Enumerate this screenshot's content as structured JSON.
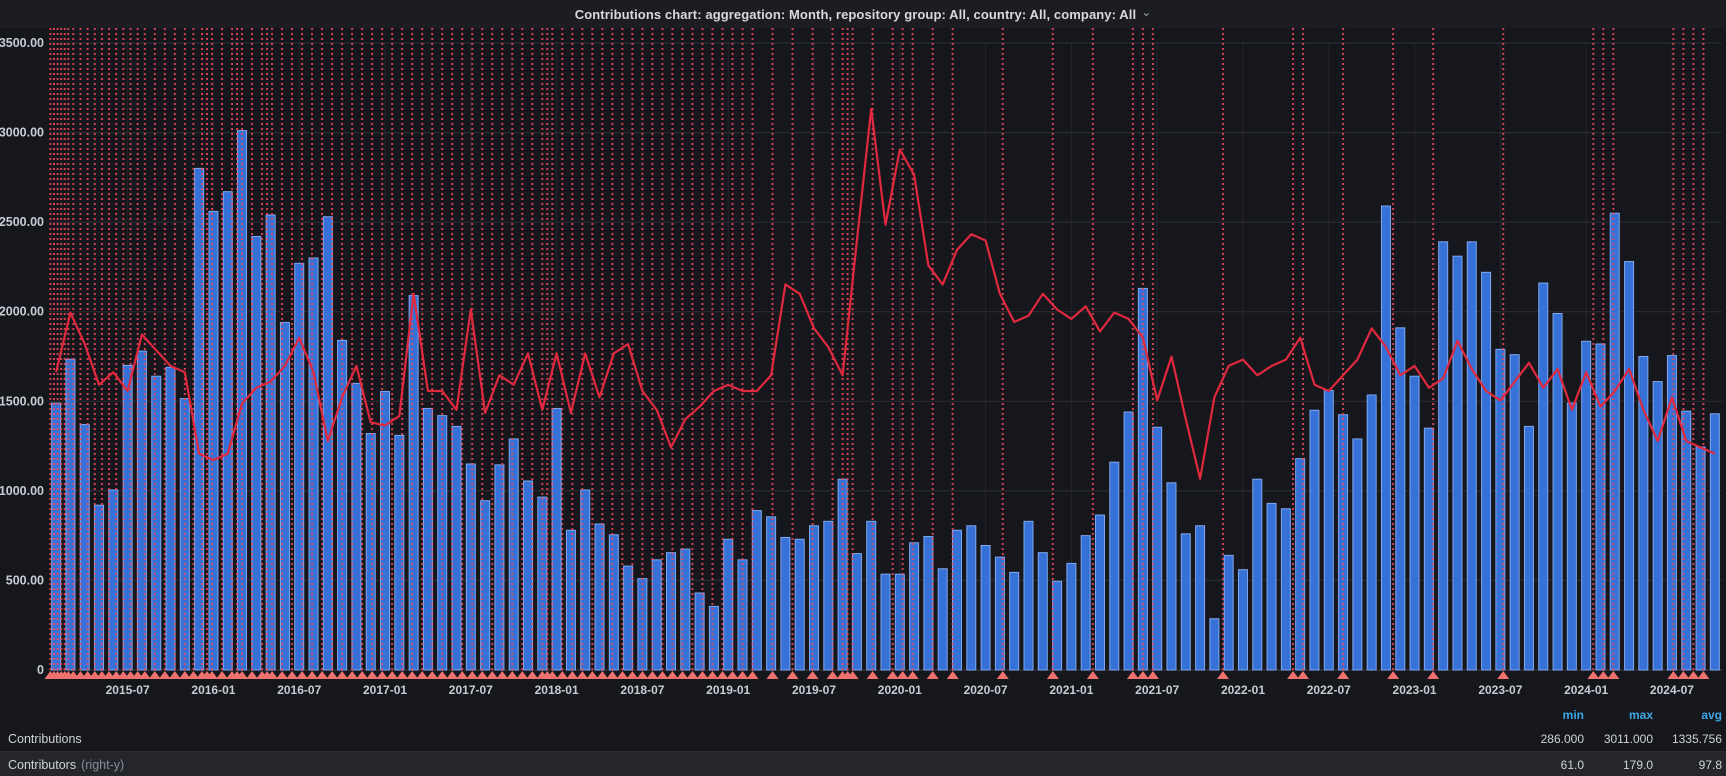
{
  "header": {
    "title": "Contributions chart: aggregation: Month, repository group: All, country: All, company: All",
    "chevron": "⌄"
  },
  "colors": {
    "panel_bg": "#15171c",
    "header_bg": "#1b1d23",
    "bar_fill": "#3571d6",
    "bar_stroke": "#82a7ee",
    "line_color": "#e0293e",
    "annotation_line": "#f2495c",
    "annotation_marker": "#f0726e",
    "grid_color": "#2c2f34",
    "grid_vertical": "#24262b",
    "zero_line": "#3a3d43",
    "axis_text": "#c7ccd3",
    "stat_header_blue": "#3fa7e8"
  },
  "chart_data": {
    "type": "bar",
    "title": "Contributions chart: aggregation: Month, repository group: All, country: All, company: All",
    "xlabel": "",
    "ylabel": "",
    "left_axis": {
      "min": 0,
      "max": 3500,
      "tick_step": 500,
      "tick_labels": [
        "3500.00",
        "3000.00",
        "2500.00",
        "2000.00",
        "1500.00",
        "1000.00",
        "500.00",
        "0"
      ]
    },
    "right_axis": {
      "min": 0,
      "max": 200,
      "shown": false
    },
    "grid": true,
    "legend_position": "bottom",
    "categories": [
      "2015-02",
      "2015-03",
      "2015-04",
      "2015-05",
      "2015-06",
      "2015-07",
      "2015-08",
      "2015-09",
      "2015-10",
      "2015-11",
      "2015-12",
      "2016-01",
      "2016-02",
      "2016-03",
      "2016-04",
      "2016-05",
      "2016-06",
      "2016-07",
      "2016-08",
      "2016-09",
      "2016-10",
      "2016-11",
      "2016-12",
      "2017-01",
      "2017-02",
      "2017-03",
      "2017-04",
      "2017-05",
      "2017-06",
      "2017-07",
      "2017-08",
      "2017-09",
      "2017-10",
      "2017-11",
      "2017-12",
      "2018-01",
      "2018-02",
      "2018-03",
      "2018-04",
      "2018-05",
      "2018-06",
      "2018-07",
      "2018-08",
      "2018-09",
      "2018-10",
      "2018-11",
      "2018-12",
      "2019-01",
      "2019-02",
      "2019-03",
      "2019-04",
      "2019-05",
      "2019-06",
      "2019-07",
      "2019-08",
      "2019-09",
      "2019-10",
      "2019-11",
      "2019-12",
      "2020-01",
      "2020-02",
      "2020-03",
      "2020-04",
      "2020-05",
      "2020-06",
      "2020-07",
      "2020-08",
      "2020-09",
      "2020-10",
      "2020-11",
      "2020-12",
      "2021-01",
      "2021-02",
      "2021-03",
      "2021-04",
      "2021-05",
      "2021-06",
      "2021-07",
      "2021-08",
      "2021-09",
      "2021-10",
      "2021-11",
      "2021-12",
      "2022-01",
      "2022-02",
      "2022-03",
      "2022-04",
      "2022-05",
      "2022-06",
      "2022-07",
      "2022-08",
      "2022-09",
      "2022-10",
      "2022-11",
      "2022-12",
      "2023-01",
      "2023-02",
      "2023-03",
      "2023-04",
      "2023-05",
      "2023-06",
      "2023-07",
      "2023-08",
      "2023-09",
      "2023-10",
      "2023-11",
      "2023-12",
      "2024-01",
      "2024-02",
      "2024-03",
      "2024-04",
      "2024-05",
      "2024-06",
      "2024-07",
      "2024-08",
      "2024-09",
      "2024-10"
    ],
    "series": [
      {
        "name": "Contributions",
        "type": "bar",
        "axis": "left",
        "values": [
          1490,
          1735,
          1370,
          920,
          1005,
          1700,
          1780,
          1640,
          1690,
          1515,
          2800,
          2560,
          2670,
          3011,
          2420,
          2540,
          1940,
          2270,
          2300,
          2530,
          1840,
          1600,
          1320,
          1555,
          1310,
          2090,
          1460,
          1420,
          1360,
          1150,
          945,
          1145,
          1290,
          1055,
          965,
          1460,
          780,
          1005,
          815,
          755,
          580,
          510,
          615,
          655,
          675,
          430,
          355,
          730,
          615,
          890,
          855,
          740,
          730,
          805,
          830,
          1065,
          650,
          830,
          535,
          535,
          710,
          745,
          565,
          780,
          805,
          695,
          630,
          545,
          830,
          655,
          495,
          595,
          750,
          865,
          1160,
          1440,
          2130,
          1355,
          1045,
          760,
          805,
          286,
          640,
          560,
          1065,
          930,
          900,
          1180,
          1450,
          1560,
          1425,
          1290,
          1535,
          2590,
          1910,
          1640,
          1350,
          2390,
          2310,
          2390,
          2220,
          1790,
          1760,
          1360,
          2160,
          1990,
          1490,
          1835,
          1820,
          2550,
          2280,
          1750,
          1610,
          1755,
          1445,
          1245,
          1430
        ]
      },
      {
        "name": "Contributors",
        "type": "line",
        "axis": "right",
        "values": [
          95,
          114,
          104,
          91,
          95,
          89,
          107,
          102,
          97,
          95,
          69,
          67,
          69,
          85,
          90,
          92,
          97,
          106,
          95,
          73,
          87,
          97,
          79,
          78,
          81,
          120,
          89,
          89,
          83,
          115,
          82,
          94,
          91,
          101,
          83,
          101,
          82,
          101,
          87,
          101,
          104,
          89,
          83,
          71,
          80,
          84,
          89,
          91,
          89,
          89,
          94,
          123,
          120,
          109,
          103,
          94,
          137,
          179,
          142,
          166,
          158,
          129,
          123,
          134,
          139,
          137,
          120,
          111,
          113,
          120,
          115,
          112,
          116,
          108,
          114,
          112,
          106,
          86,
          100,
          80,
          61,
          87,
          97,
          99,
          94,
          97,
          99,
          106,
          91,
          89,
          94,
          99,
          109,
          103,
          94,
          97,
          90,
          93,
          105,
          96,
          89,
          86,
          92,
          98,
          90,
          96,
          83,
          95,
          84,
          89,
          96,
          83,
          73,
          87,
          73,
          71,
          69
        ]
      }
    ],
    "x_ticks": [
      {
        "label": "2015-07",
        "m": 5
      },
      {
        "label": "2016-01",
        "m": 11
      },
      {
        "label": "2016-07",
        "m": 17
      },
      {
        "label": "2017-01",
        "m": 23
      },
      {
        "label": "2017-07",
        "m": 29
      },
      {
        "label": "2018-01",
        "m": 35
      },
      {
        "label": "2018-07",
        "m": 41
      },
      {
        "label": "2019-01",
        "m": 47
      },
      {
        "label": "2019-07",
        "m": 53
      },
      {
        "label": "2020-01",
        "m": 59
      },
      {
        "label": "2020-07",
        "m": 65
      },
      {
        "label": "2021-01",
        "m": 71
      },
      {
        "label": "2021-07",
        "m": 77
      },
      {
        "label": "2022-01",
        "m": 83
      },
      {
        "label": "2022-07",
        "m": 89
      },
      {
        "label": "2023-01",
        "m": 95
      },
      {
        "label": "2023-07",
        "m": 101
      },
      {
        "label": "2024-01",
        "m": 107
      },
      {
        "label": "2024-07",
        "m": 113
      }
    ],
    "annotations_months": [
      -0.4,
      -0.15,
      0.1,
      0.35,
      0.6,
      0.85,
      1.2,
      1.7,
      2.2,
      2.7,
      3.2,
      3.7,
      4.2,
      4.7,
      5.2,
      5.7,
      6.2,
      6.9,
      7.6,
      8.3,
      9.0,
      9.6,
      10.2,
      10.55,
      10.9,
      11.6,
      12.3,
      12.65,
      13.0,
      13.7,
      14.4,
      14.75,
      15.1,
      15.8,
      16.5,
      17.2,
      17.9,
      18.6,
      19.3,
      20.0,
      20.7,
      21.4,
      22.1,
      22.8,
      23.5,
      24.2,
      24.9,
      25.6,
      26.3,
      27.0,
      27.7,
      28.4,
      29.1,
      29.8,
      30.5,
      31.2,
      31.9,
      32.6,
      33.3,
      34.0,
      34.35,
      34.7,
      35.4,
      36.1,
      36.8,
      37.5,
      38.2,
      38.9,
      39.6,
      40.3,
      41.0,
      41.7,
      42.4,
      43.1,
      43.8,
      44.5,
      45.2,
      45.9,
      46.6,
      47.3,
      48.0,
      48.7,
      50.1,
      51.5,
      52.9,
      54.3,
      55.0,
      55.35,
      55.7,
      57.1,
      58.5,
      59.2,
      59.9,
      61.3,
      62.7,
      66.2,
      69.7,
      72.5,
      75.3,
      76.0,
      76.7,
      81.6,
      86.5,
      87.2,
      90.0,
      93.5,
      96.3,
      101.2,
      107.5,
      108.2,
      108.9,
      113.1,
      113.8,
      114.5,
      115.2
    ]
  },
  "legend": {
    "columns": [
      "min",
      "max",
      "avg"
    ],
    "rows": [
      {
        "label": "Contributions",
        "suffix": "",
        "min": "286.000",
        "max": "3011.000",
        "avg": "1335.756"
      },
      {
        "label": "Contributors",
        "suffix": "(right-y)",
        "min": "61.0",
        "max": "179.0",
        "avg": "97.8"
      }
    ]
  }
}
